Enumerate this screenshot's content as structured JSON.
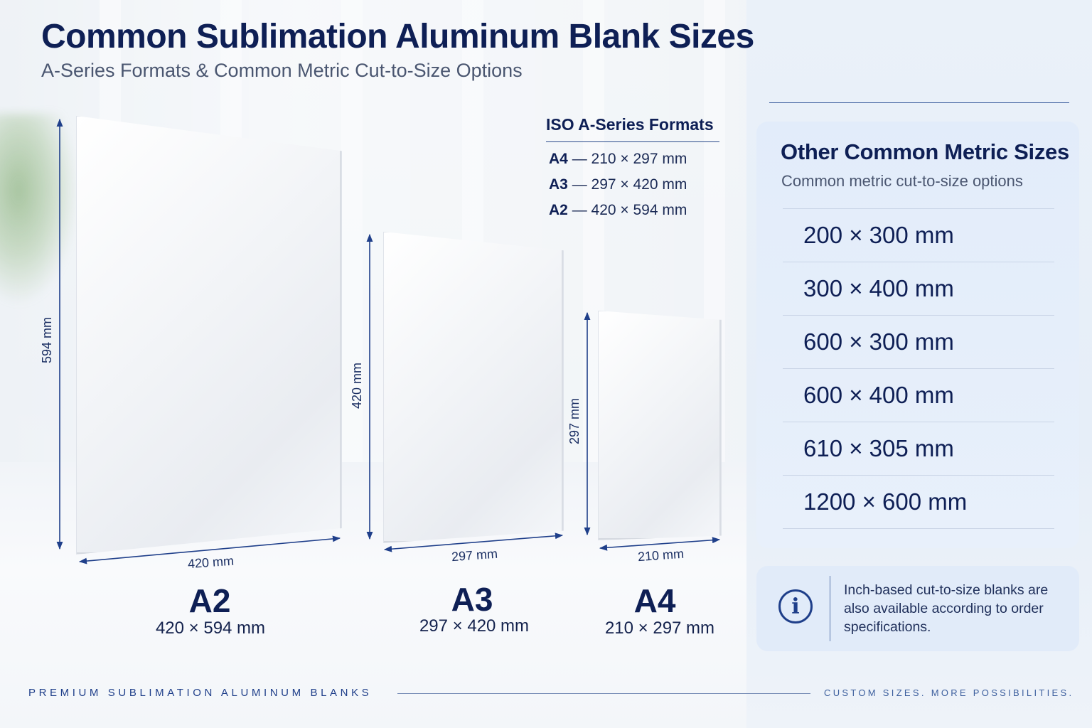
{
  "header": {
    "title": "Common Sublimation Aluminum Blank Sizes",
    "subtitle": "A-Series Formats & Common Metric Cut-to-Size Options"
  },
  "blanks": [
    {
      "name": "A2",
      "size": "420 × 594 mm",
      "width_label": "420 mm",
      "height_label": "594 mm"
    },
    {
      "name": "A3",
      "size": "297 × 420 mm",
      "width_label": "297 mm",
      "height_label": "420 mm"
    },
    {
      "name": "A4",
      "size": "210 × 297 mm",
      "width_label": "210 mm",
      "height_label": "297 mm"
    }
  ],
  "iso": {
    "title": "ISO A-Series Formats",
    "rows": [
      {
        "code": "A4",
        "dims": "— 210 × 297 mm"
      },
      {
        "code": "A3",
        "dims": "— 297 × 420 mm"
      },
      {
        "code": "A2",
        "dims": "— 420 × 594 mm"
      }
    ]
  },
  "metric": {
    "title": "Other Common Metric Sizes",
    "subtitle": "Common metric cut-to-size options",
    "sizes": [
      "200 × 300 mm",
      "300 × 400 mm",
      "600 × 300 mm",
      "600 × 400 mm",
      "610 × 305 mm",
      "1200 × 600 mm"
    ]
  },
  "info": {
    "icon": "info-icon",
    "glyph": "i",
    "text": "Inch-based cut-to-size blanks are also available according to order specifications."
  },
  "footer": {
    "left": "PREMIUM SUBLIMATION ALUMINUM BLANKS",
    "right": "CUSTOM SIZES. MORE POSSIBILITIES."
  },
  "colors": {
    "navy": "#0e1f55",
    "accent_blue": "#1f3f8a",
    "panel_bg": "#e6eef8"
  }
}
